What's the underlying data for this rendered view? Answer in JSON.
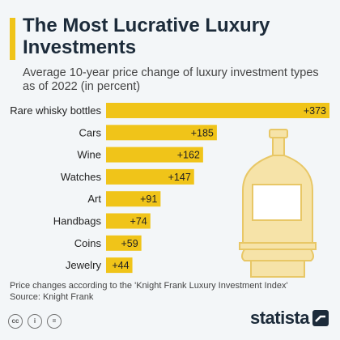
{
  "header": {
    "title": "The Most Lucrative Luxury Investments",
    "subtitle": "Average 10-year price change of luxury investment types as of 2022 (in percent)"
  },
  "chart_data": {
    "type": "bar",
    "orientation": "horizontal",
    "categories": [
      "Rare whisky bottles",
      "Cars",
      "Wine",
      "Watches",
      "Art",
      "Handbags",
      "Coins",
      "Jewelry"
    ],
    "values": [
      373,
      185,
      162,
      147,
      91,
      74,
      59,
      44
    ],
    "data_labels": [
      "+373",
      "+185",
      "+162",
      "+147",
      "+91",
      "+74",
      "+59",
      "+44"
    ],
    "title": "The Most Lucrative Luxury Investments",
    "xlim": [
      0,
      373
    ],
    "grid": false,
    "bar_color": "#f0c419",
    "illustration_color": "#f6e3a8"
  },
  "footer": {
    "note": "Price changes according to the 'Knight Frank Luxury Investment Index'",
    "source": "Source: Knight Frank",
    "icons": [
      "cc-icon",
      "by-icon",
      "equals-icon"
    ],
    "logo": "statista"
  }
}
